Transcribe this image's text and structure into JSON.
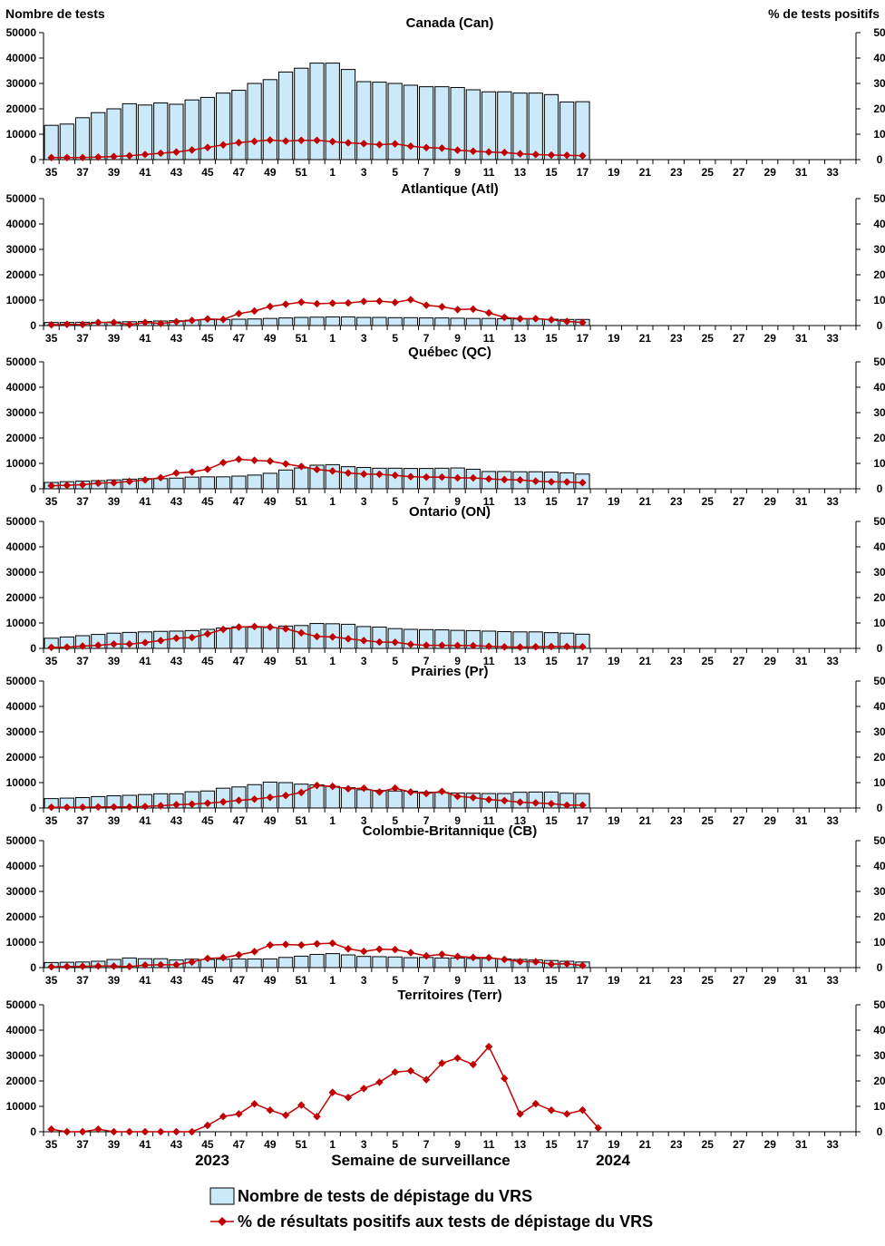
{
  "y_left_title": "Nombre de tests",
  "y_right_title": "% de tests positifs",
  "x_title": "Semaine de surveillance",
  "year_start": "2023",
  "year_end": "2024",
  "legend": {
    "bars": "Nombre de tests de dépistage du VRS",
    "line": "% de résultats positifs aux tests de dépistage du VRS"
  },
  "colors": {
    "bar_fill": "#cce9f9",
    "bar_stroke": "#000000",
    "line": "#c00000",
    "axis": "#000000"
  },
  "chart_data": [
    {
      "type": "bar+line",
      "title": "Canada (Can)",
      "weeks": [
        35,
        36,
        37,
        38,
        39,
        40,
        41,
        42,
        43,
        44,
        45,
        46,
        47,
        48,
        49,
        50,
        51,
        52,
        1,
        2,
        3,
        4,
        5,
        6,
        7,
        8,
        9,
        10,
        11,
        12,
        13,
        14,
        15,
        16,
        17,
        18,
        19,
        20,
        21,
        22,
        23,
        24,
        25,
        26,
        27,
        28,
        29,
        30,
        31,
        32,
        33,
        34
      ],
      "x_tick_labels": [
        "35",
        "37",
        "39",
        "41",
        "43",
        "45",
        "47",
        "49",
        "51",
        "1",
        "3",
        "5",
        "7",
        "9",
        "11",
        "13",
        "15",
        "17",
        "19",
        "21",
        "23",
        "25",
        "27",
        "29",
        "31",
        "33"
      ],
      "y_left_ticks": [
        "0",
        "10000",
        "20000",
        "30000",
        "40000",
        "50000"
      ],
      "y_right_ticks": [
        "0",
        "10",
        "20",
        "30",
        "40",
        "50"
      ],
      "ylim_left": [
        0,
        50000
      ],
      "ylim_right": [
        0,
        50
      ],
      "tests": [
        13500,
        14000,
        16500,
        18500,
        20000,
        22000,
        21500,
        22300,
        21800,
        23500,
        24500,
        26200,
        27300,
        30000,
        31500,
        34500,
        36000,
        38000,
        38000,
        35500,
        30700,
        30500,
        30000,
        29300,
        28700,
        28700,
        28400,
        27500,
        26700,
        26700,
        26200,
        26200,
        25600,
        22700,
        22800
      ],
      "pct_positive": [
        0.8,
        0.8,
        0.8,
        1,
        1.2,
        1.5,
        2,
        2.5,
        3,
        3.8,
        4.8,
        5.8,
        6.7,
        7.2,
        7.7,
        7.3,
        7.6,
        7.6,
        7.1,
        6.6,
        6.3,
        5.9,
        6.2,
        5.3,
        4.7,
        4.5,
        3.7,
        3.3,
        3,
        2.8,
        2.3,
        2,
        1.8,
        1.7,
        1.5
      ]
    },
    {
      "type": "bar+line",
      "title": "Atlantique (Atl)",
      "weeks": [
        35,
        36,
        37,
        38,
        39,
        40,
        41,
        42,
        43,
        44,
        45,
        46,
        47,
        48,
        49,
        50,
        51,
        52,
        1,
        2,
        3,
        4,
        5,
        6,
        7,
        8,
        9,
        10,
        11,
        12,
        13,
        14,
        15,
        16,
        17,
        18,
        19,
        20,
        21,
        22,
        23,
        24,
        25,
        26,
        27,
        28,
        29,
        30,
        31,
        32,
        33,
        34
      ],
      "x_tick_labels": [
        "35",
        "37",
        "39",
        "41",
        "43",
        "45",
        "47",
        "49",
        "51",
        "1",
        "3",
        "5",
        "7",
        "9",
        "11",
        "13",
        "15",
        "17",
        "19",
        "21",
        "23",
        "25",
        "27",
        "29",
        "31",
        "33"
      ],
      "y_left_ticks": [
        "0",
        "10000",
        "20000",
        "30000",
        "40000",
        "50000"
      ],
      "y_right_ticks": [
        "0",
        "10",
        "20",
        "30",
        "40",
        "50"
      ],
      "ylim_left": [
        0,
        50000
      ],
      "ylim_right": [
        0,
        50
      ],
      "tests": [
        1200,
        1200,
        1300,
        1300,
        1400,
        1500,
        1600,
        1800,
        1900,
        2100,
        2300,
        2400,
        2500,
        2600,
        2800,
        3000,
        3200,
        3300,
        3400,
        3400,
        3200,
        3200,
        3100,
        3100,
        3000,
        3000,
        2900,
        2800,
        2800,
        2700,
        2600,
        2600,
        2500,
        2400,
        2400
      ],
      "pct_positive": [
        0.3,
        0.5,
        0.4,
        1.2,
        1.2,
        0.4,
        1.2,
        0.8,
        1.5,
        2,
        2.6,
        2.4,
        4.7,
        5.7,
        7.5,
        8.4,
        9.2,
        8.6,
        8.8,
        8.9,
        9.5,
        9.6,
        9.1,
        10.2,
        8,
        7.4,
        6.3,
        6.5,
        5,
        3.2,
        2.7,
        2.7,
        2.3,
        1.6,
        1.2
      ]
    },
    {
      "type": "bar+line",
      "title": "Québec (QC)",
      "weeks": [
        35,
        36,
        37,
        38,
        39,
        40,
        41,
        42,
        43,
        44,
        45,
        46,
        47,
        48,
        49,
        50,
        51,
        52,
        1,
        2,
        3,
        4,
        5,
        6,
        7,
        8,
        9,
        10,
        11,
        12,
        13,
        14,
        15,
        16,
        17,
        18,
        19,
        20,
        21,
        22,
        23,
        24,
        25,
        26,
        27,
        28,
        29,
        30,
        31,
        32,
        33,
        34
      ],
      "x_tick_labels": [
        "35",
        "37",
        "39",
        "41",
        "43",
        "45",
        "47",
        "49",
        "51",
        "1",
        "3",
        "5",
        "7",
        "9",
        "11",
        "13",
        "15",
        "17",
        "19",
        "21",
        "23",
        "25",
        "27",
        "29",
        "31",
        "33"
      ],
      "y_left_ticks": [
        "0",
        "10000",
        "20000",
        "30000",
        "40000",
        "50000"
      ],
      "y_right_ticks": [
        "0",
        "10",
        "20",
        "30",
        "40",
        "50"
      ],
      "ylim_left": [
        0,
        50000
      ],
      "ylim_right": [
        0,
        50
      ],
      "tests": [
        2500,
        2800,
        3000,
        3200,
        3500,
        3800,
        4000,
        4000,
        4200,
        4600,
        4700,
        4700,
        5000,
        5400,
        6100,
        7400,
        8200,
        9300,
        9500,
        8700,
        8400,
        8100,
        8100,
        8000,
        8000,
        8100,
        8200,
        7700,
        6800,
        6800,
        6700,
        6700,
        6600,
        6300,
        5800
      ],
      "pct_positive": [
        1.2,
        1.4,
        1.6,
        2.2,
        2.4,
        2.9,
        3.5,
        4.4,
        6.2,
        6.6,
        7.7,
        10.3,
        11.6,
        11.2,
        10.9,
        9.8,
        8.8,
        7.6,
        7,
        6.2,
        5.8,
        5.7,
        5.3,
        4.8,
        4.6,
        4.6,
        4.3,
        4.3,
        3.9,
        3.6,
        3.5,
        3,
        2.7,
        2.7,
        2.4
      ]
    },
    {
      "type": "bar+line",
      "title": "Ontario (ON)",
      "weeks": [
        35,
        36,
        37,
        38,
        39,
        40,
        41,
        42,
        43,
        44,
        45,
        46,
        47,
        48,
        49,
        50,
        51,
        52,
        1,
        2,
        3,
        4,
        5,
        6,
        7,
        8,
        9,
        10,
        11,
        12,
        13,
        14,
        15,
        16,
        17,
        18,
        19,
        20,
        21,
        22,
        23,
        24,
        25,
        26,
        27,
        28,
        29,
        30,
        31,
        32,
        33,
        34
      ],
      "x_tick_labels": [
        "35",
        "37",
        "39",
        "41",
        "43",
        "45",
        "47",
        "49",
        "51",
        "1",
        "3",
        "5",
        "7",
        "9",
        "11",
        "13",
        "15",
        "17",
        "19",
        "21",
        "23",
        "25",
        "27",
        "29",
        "31",
        "33"
      ],
      "y_left_ticks": [
        "0",
        "10000",
        "20000",
        "30000",
        "40000",
        "50000"
      ],
      "y_right_ticks": [
        "0",
        "10",
        "20",
        "30",
        "40",
        "50"
      ],
      "ylim_left": [
        0,
        50000
      ],
      "ylim_right": [
        0,
        50
      ],
      "tests": [
        4000,
        4500,
        5000,
        5500,
        6000,
        6300,
        6500,
        6700,
        6800,
        7000,
        7500,
        8000,
        8500,
        8300,
        8200,
        8800,
        9000,
        9800,
        9700,
        9500,
        8600,
        8400,
        7800,
        7500,
        7400,
        7300,
        7100,
        7000,
        6800,
        6600,
        6500,
        6500,
        6200,
        6000,
        5600
      ],
      "pct_positive": [
        0.4,
        0.5,
        0.9,
        1.2,
        1.7,
        1.7,
        2.3,
        3.1,
        4,
        4.3,
        5.7,
        7.5,
        8.4,
        8.6,
        8.4,
        7.7,
        6.1,
        4.7,
        4.5,
        3.8,
        3.1,
        2.5,
        2.4,
        1.6,
        1.2,
        1.2,
        1.1,
        1.1,
        0.8,
        0.6,
        0.5,
        0.6,
        0.7,
        0.7,
        0.6
      ]
    },
    {
      "type": "bar+line",
      "title": "Prairies (Pr)",
      "weeks": [
        35,
        36,
        37,
        38,
        39,
        40,
        41,
        42,
        43,
        44,
        45,
        46,
        47,
        48,
        49,
        50,
        51,
        52,
        1,
        2,
        3,
        4,
        5,
        6,
        7,
        8,
        9,
        10,
        11,
        12,
        13,
        14,
        15,
        16,
        17,
        18,
        19,
        20,
        21,
        22,
        23,
        24,
        25,
        26,
        27,
        28,
        29,
        30,
        31,
        32,
        33,
        34
      ],
      "x_tick_labels": [
        "35",
        "37",
        "39",
        "41",
        "43",
        "45",
        "47",
        "49",
        "51",
        "1",
        "3",
        "5",
        "7",
        "9",
        "11",
        "13",
        "15",
        "17",
        "19",
        "21",
        "23",
        "25",
        "27",
        "29",
        "31",
        "33"
      ],
      "y_left_ticks": [
        "0",
        "10000",
        "20000",
        "30000",
        "40000",
        "50000"
      ],
      "y_right_ticks": [
        "0",
        "10",
        "20",
        "30",
        "40",
        "50"
      ],
      "ylim_left": [
        0,
        50000
      ],
      "ylim_right": [
        0,
        50
      ],
      "tests": [
        3700,
        3900,
        4100,
        4500,
        4800,
        5000,
        5300,
        5600,
        5600,
        6400,
        6700,
        7800,
        8300,
        9200,
        10200,
        10000,
        9400,
        9100,
        8500,
        8000,
        7200,
        6900,
        6700,
        6600,
        6200,
        6100,
        5900,
        5800,
        5700,
        5700,
        6200,
        6300,
        6300,
        5800,
        5700
      ],
      "pct_positive": [
        0.3,
        0.3,
        0.3,
        0.4,
        0.4,
        0.4,
        0.6,
        0.9,
        1.3,
        1.5,
        1.9,
        2.4,
        3,
        3.5,
        4.2,
        4.9,
        6.1,
        8.9,
        8.5,
        7.6,
        7.8,
        6.3,
        7.8,
        6.3,
        5.7,
        6.5,
        4.6,
        4.1,
        3.3,
        2.9,
        2.3,
        2,
        1.7,
        1.1,
        1.1
      ]
    },
    {
      "type": "bar+line",
      "title": "Colombie-Britannique (CB)",
      "weeks": [
        35,
        36,
        37,
        38,
        39,
        40,
        41,
        42,
        43,
        44,
        45,
        46,
        47,
        48,
        49,
        50,
        51,
        52,
        1,
        2,
        3,
        4,
        5,
        6,
        7,
        8,
        9,
        10,
        11,
        12,
        13,
        14,
        15,
        16,
        17,
        18,
        19,
        20,
        21,
        22,
        23,
        24,
        25,
        26,
        27,
        28,
        29,
        30,
        31,
        32,
        33,
        34
      ],
      "x_tick_labels": [
        "35",
        "37",
        "39",
        "41",
        "43",
        "45",
        "47",
        "49",
        "51",
        "1",
        "3",
        "5",
        "7",
        "9",
        "11",
        "13",
        "15",
        "17",
        "19",
        "21",
        "23",
        "25",
        "27",
        "29",
        "31",
        "33"
      ],
      "y_left_ticks": [
        "0",
        "10000",
        "20000",
        "30000",
        "40000",
        "50000"
      ],
      "y_right_ticks": [
        "0",
        "10",
        "20",
        "30",
        "40",
        "50"
      ],
      "ylim_left": [
        0,
        50000
      ],
      "ylim_right": [
        0,
        50
      ],
      "tests": [
        2000,
        2100,
        2200,
        2500,
        3200,
        3800,
        3500,
        3500,
        3000,
        3300,
        3200,
        3300,
        3400,
        3400,
        3400,
        4000,
        4500,
        5200,
        5500,
        5000,
        4400,
        4300,
        4200,
        3900,
        4000,
        3800,
        3800,
        3600,
        3600,
        3400,
        3200,
        3000,
        2800,
        2500,
        2200
      ],
      "pct_positive": [
        0.3,
        0.4,
        0.5,
        0.6,
        0.6,
        0.4,
        1,
        1.1,
        1.1,
        2.2,
        3.6,
        3.9,
        5,
        6.3,
        8.9,
        9.1,
        8.9,
        9.4,
        9.6,
        7.4,
        6.4,
        7.2,
        7.1,
        5.9,
        4.6,
        5.2,
        4.4,
        4,
        3.9,
        3.2,
        2.4,
        2.3,
        1.4,
        1.5,
        0.8
      ]
    },
    {
      "type": "line",
      "title": "Territoires (Terr)",
      "weeks": [
        35,
        36,
        37,
        38,
        39,
        40,
        41,
        42,
        43,
        44,
        45,
        46,
        47,
        48,
        49,
        50,
        51,
        52,
        1,
        2,
        3,
        4,
        5,
        6,
        7,
        8,
        9,
        10,
        11,
        12,
        13,
        14,
        15,
        16,
        17,
        18,
        19,
        20,
        21,
        22,
        23,
        24,
        25,
        26,
        27,
        28,
        29,
        30,
        31,
        32,
        33,
        34
      ],
      "x_tick_labels": [
        "35",
        "37",
        "39",
        "41",
        "43",
        "45",
        "47",
        "49",
        "51",
        "1",
        "3",
        "5",
        "7",
        "9",
        "11",
        "13",
        "15",
        "17",
        "19",
        "21",
        "23",
        "25",
        "27",
        "29",
        "31",
        "33"
      ],
      "y_left_ticks": [
        "0",
        "10000",
        "20000",
        "30000",
        "40000",
        "50000"
      ],
      "y_right_ticks": [
        "0",
        "10",
        "20",
        "30",
        "40",
        "50"
      ],
      "ylim_left": [
        0,
        50000
      ],
      "ylim_right": [
        0,
        50
      ],
      "tests": [],
      "pct_positive": [
        1,
        0,
        0,
        1,
        0,
        0,
        0,
        0,
        0,
        0,
        2.5,
        6,
        7,
        11,
        8.5,
        6.5,
        10.5,
        6,
        15.5,
        13.5,
        17,
        19.5,
        23.5,
        24,
        20.5,
        27,
        29,
        26.5,
        33.5,
        21,
        7,
        11,
        8.5,
        7,
        8.5,
        1.5
      ]
    }
  ]
}
